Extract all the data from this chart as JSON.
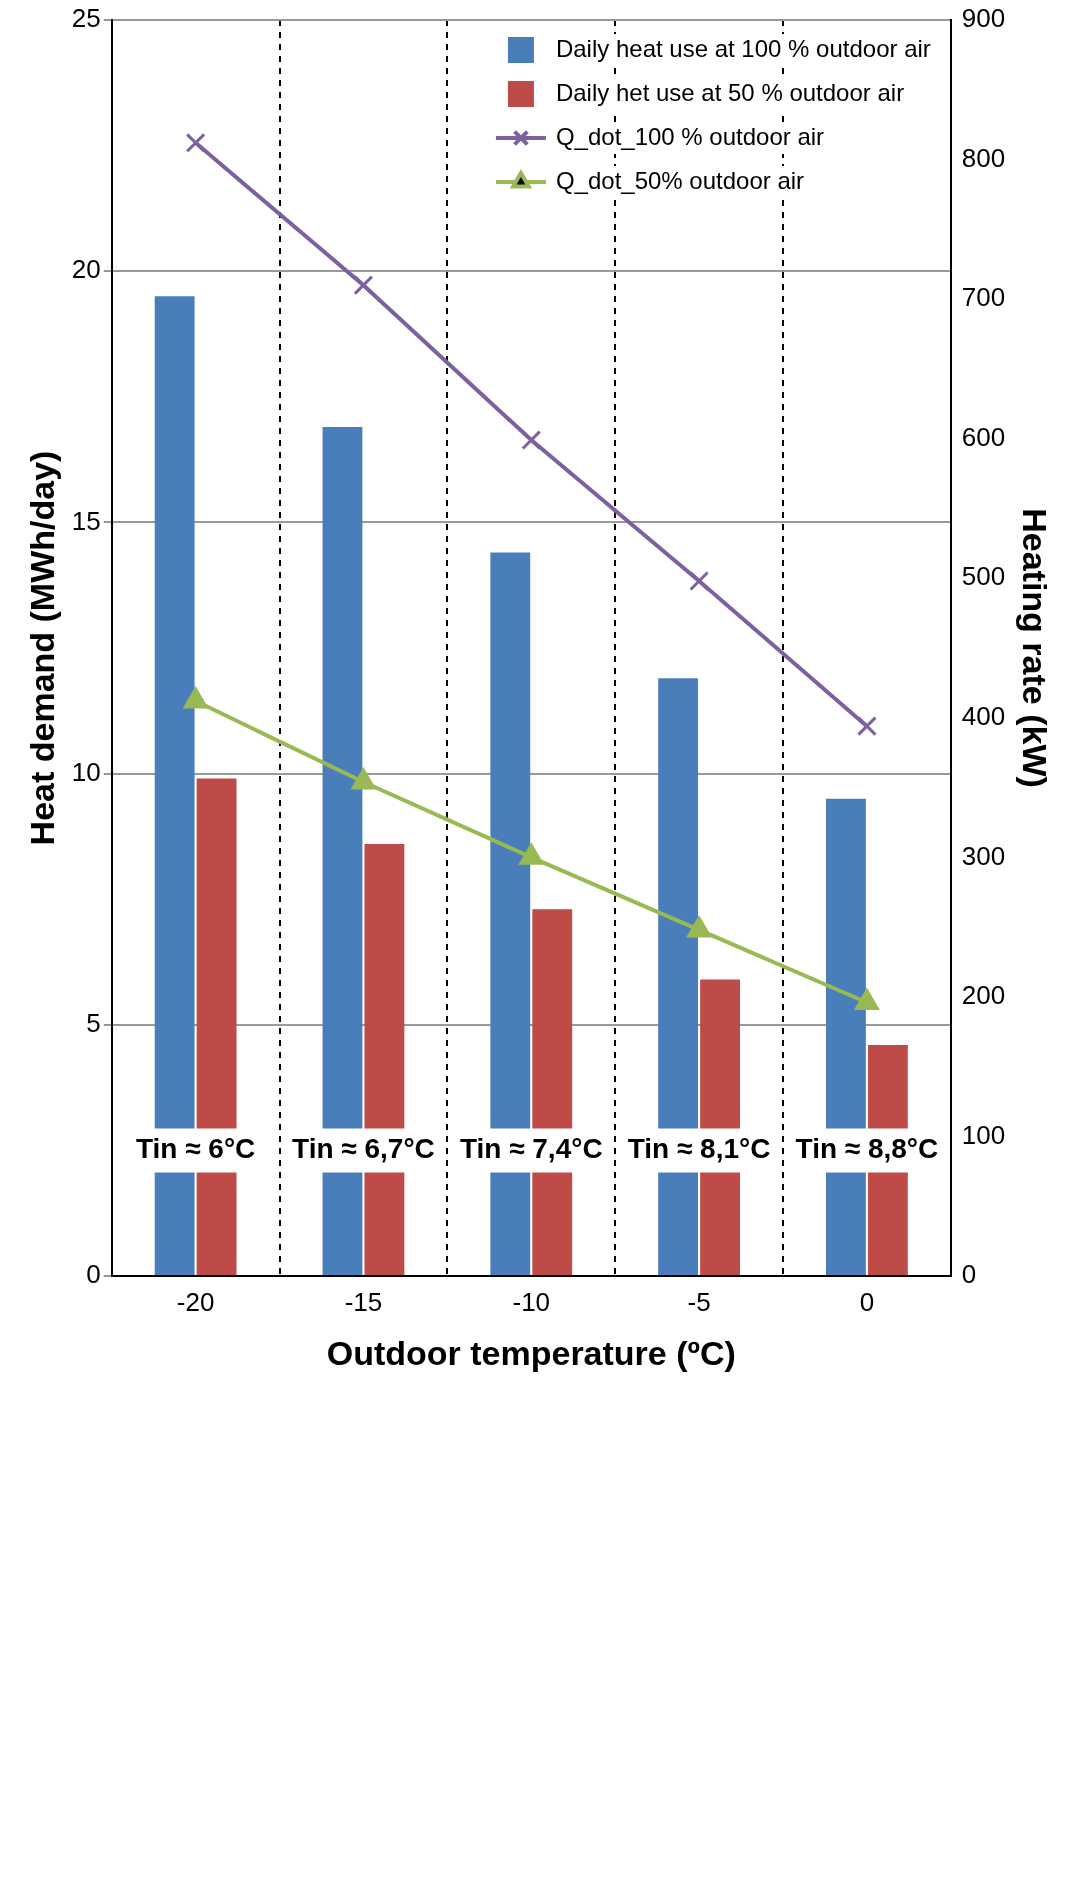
{
  "chart_data": {
    "type": "bar",
    "xlabel": "Outdoor temperature (ºC)",
    "ylabel": "Heat demand (MWh/day)",
    "y2label": "Heating rate (kW)",
    "categories": [
      "-20",
      "-15",
      "-10",
      "-5",
      "0"
    ],
    "series": [
      {
        "name": "Daily heat use at 100 % outdoor air",
        "color": "#4a7ebb",
        "values": [
          19.5,
          16.9,
          14.4,
          11.9,
          9.5
        ]
      },
      {
        "name": "Daily het use at 50 % outdoor air",
        "color": "#be4b48",
        "values": [
          9.9,
          8.6,
          7.3,
          5.9,
          4.6
        ]
      },
      {
        "name": "Q_dot_100 % outdoor air",
        "type": "line",
        "axis": "y2",
        "marker": "cross",
        "color": "#7d60a0",
        "values": [
          812,
          710,
          599,
          498,
          394
        ]
      },
      {
        "name": "Q_dot_50% outdoor air",
        "type": "line",
        "axis": "y2",
        "marker": "triangle",
        "color": "#98b954",
        "values": [
          412,
          354,
          300,
          248,
          196
        ]
      }
    ],
    "ylim": [
      0,
      25
    ],
    "yticks": [
      0,
      5,
      10,
      15,
      20,
      25
    ],
    "y2lim": [
      0,
      900
    ],
    "y2ticks": [
      0,
      100,
      200,
      300,
      400,
      500,
      600,
      700,
      800,
      900
    ],
    "grid": true,
    "legend": "top right",
    "annotations": [
      {
        "text": "Tin ≈ 6°C",
        "x": "-20",
        "y": 2.5
      },
      {
        "text": "Tin ≈ 6,7°C",
        "x": "-15",
        "y": 2.5
      },
      {
        "text": "Tin ≈ 7,4°C",
        "x": "-10",
        "y": 2.5
      },
      {
        "text": "Tin ≈ 8,1°C",
        "x": "-5",
        "y": 2.5
      },
      {
        "text": "Tin ≈ 8,8°C",
        "x": "0",
        "y": 2.5
      }
    ]
  }
}
